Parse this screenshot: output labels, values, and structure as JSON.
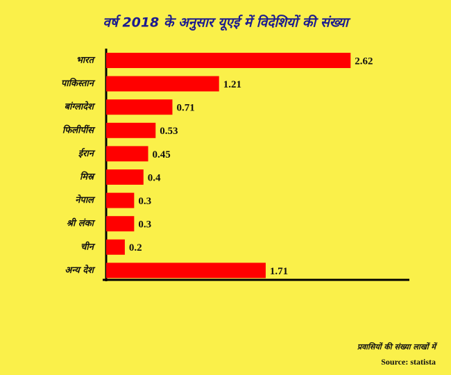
{
  "chart_data": {
    "type": "bar",
    "orientation": "horizontal",
    "title": "वर्ष 2018 के अनुसार यूएई में विदेशियों की संख्या",
    "categories": [
      "भारत",
      "पाकिस्तान",
      "बांग्लादेश",
      "फिलीपींस",
      "ईरान",
      "मिस्र",
      "नेपाल",
      "श्री लंका",
      "चीन",
      "अन्य देश"
    ],
    "values": [
      2.62,
      1.21,
      0.71,
      0.53,
      0.45,
      0.4,
      0.3,
      0.3,
      0.2,
      1.71
    ],
    "color": "#ff0000",
    "xlim": [
      0,
      3.25
    ],
    "note": "प्रवासियों की संख्या लाखों में",
    "source": "Source: statista"
  }
}
